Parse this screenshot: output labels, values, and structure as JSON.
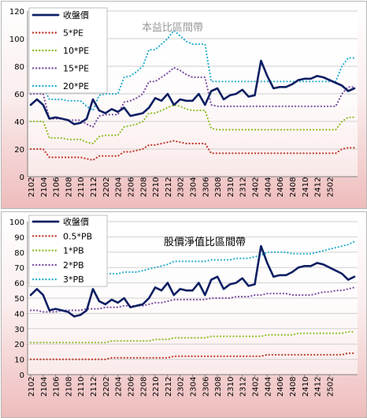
{
  "chart_data": [
    {
      "type": "line",
      "title": "本益比區間帶",
      "title_color": "#9a9a9a",
      "ylim": [
        0,
        120
      ],
      "y_ticks": [
        0,
        20,
        40,
        60,
        80,
        100,
        120
      ],
      "x_tick_labels": [
        "2102",
        "2104",
        "2106",
        "2108",
        "2110",
        "2112",
        "2202",
        "2204",
        "2206",
        "2208",
        "2210",
        "2212",
        "2302",
        "2304",
        "2306",
        "2308",
        "2310",
        "2312",
        "2402",
        "2404",
        "2406",
        "2408",
        "2410",
        "2412",
        "2502"
      ],
      "grid": true,
      "legend_position": "top-left",
      "series": [
        {
          "name": "收盤價",
          "color": "#0d1f63",
          "style": "solid",
          "values": [
            52,
            56,
            52,
            42,
            43,
            42,
            41,
            38,
            39,
            42,
            56,
            48,
            46,
            49,
            47,
            50,
            44,
            45,
            46,
            50,
            57,
            55,
            60,
            52,
            56,
            55,
            55,
            60,
            52,
            62,
            64,
            56,
            59,
            60,
            63,
            58,
            59,
            84,
            73,
            64,
            65,
            65,
            67,
            70,
            71,
            71,
            73,
            72,
            70,
            68,
            66,
            62,
            64
          ]
        },
        {
          "name": "5*PE",
          "color": "#c0392b",
          "style": "dotted",
          "values": [
            20,
            20,
            20,
            14,
            14,
            14,
            14,
            14,
            14,
            13,
            12,
            15,
            15,
            15,
            15,
            18,
            18,
            19,
            20,
            23,
            23,
            24,
            25,
            26,
            25,
            24,
            24,
            24,
            24,
            17,
            17,
            17,
            17,
            17,
            17,
            17,
            17,
            17,
            17,
            17,
            17,
            17,
            17,
            17,
            17,
            17,
            17,
            17,
            17,
            17,
            20,
            21,
            21
          ]
        },
        {
          "name": "10*PE",
          "color": "#8fbf2a",
          "style": "dotted",
          "values": [
            40,
            40,
            40,
            28,
            28,
            28,
            27,
            27,
            27,
            25,
            24,
            29,
            30,
            30,
            30,
            36,
            37,
            38,
            40,
            46,
            46,
            48,
            50,
            52,
            51,
            49,
            48,
            48,
            48,
            35,
            34,
            34,
            34,
            34,
            34,
            34,
            34,
            34,
            34,
            34,
            34,
            34,
            34,
            34,
            34,
            34,
            34,
            34,
            34,
            34,
            40,
            43,
            43
          ]
        },
        {
          "name": "15*PE",
          "color": "#7a4fa3",
          "style": "dotted",
          "values": [
            60,
            60,
            60,
            42,
            42,
            42,
            41,
            41,
            41,
            38,
            36,
            44,
            45,
            45,
            45,
            54,
            55,
            57,
            60,
            69,
            69,
            72,
            75,
            79,
            77,
            74,
            72,
            72,
            72,
            52,
            51,
            51,
            51,
            51,
            51,
            51,
            51,
            51,
            51,
            51,
            51,
            51,
            51,
            51,
            51,
            51,
            51,
            51,
            51,
            51,
            60,
            65,
            65
          ]
        },
        {
          "name": "20*PE",
          "color": "#2ab0cf",
          "style": "dotted",
          "values": [
            65,
            65,
            65,
            56,
            56,
            56,
            55,
            55,
            55,
            51,
            48,
            59,
            60,
            60,
            60,
            72,
            73,
            76,
            80,
            92,
            92,
            96,
            100,
            106,
            102,
            98,
            96,
            96,
            96,
            69,
            69,
            69,
            69,
            69,
            69,
            69,
            69,
            69,
            69,
            69,
            69,
            69,
            69,
            69,
            69,
            69,
            69,
            69,
            69,
            69,
            80,
            86,
            86
          ]
        }
      ]
    },
    {
      "type": "line",
      "title": "股價淨值比區間帶",
      "title_color": "#000000",
      "ylim": [
        0,
        100
      ],
      "y_ticks": [
        0,
        10,
        20,
        30,
        40,
        50,
        60,
        70,
        80,
        90,
        100
      ],
      "x_tick_labels": [
        "2102",
        "2104",
        "2106",
        "2108",
        "2110",
        "2112",
        "2202",
        "2204",
        "2206",
        "2208",
        "2210",
        "2212",
        "2302",
        "2304",
        "2306",
        "2308",
        "2310",
        "2312",
        "2402",
        "2404",
        "2406",
        "2408",
        "2410",
        "2412",
        "2502"
      ],
      "grid": true,
      "legend_position": "top-left",
      "series": [
        {
          "name": "收盤價",
          "color": "#0d1f63",
          "style": "solid",
          "values": [
            52,
            56,
            52,
            42,
            43,
            42,
            41,
            38,
            39,
            42,
            56,
            48,
            46,
            49,
            47,
            50,
            44,
            45,
            46,
            50,
            57,
            55,
            60,
            52,
            56,
            55,
            55,
            60,
            52,
            62,
            64,
            56,
            59,
            60,
            63,
            58,
            59,
            84,
            73,
            64,
            65,
            65,
            67,
            70,
            71,
            71,
            73,
            72,
            70,
            68,
            66,
            62,
            64
          ]
        },
        {
          "name": "0.5*PB",
          "color": "#c0392b",
          "style": "dotted",
          "values": [
            10,
            10,
            10,
            10,
            10,
            10,
            10,
            10,
            10,
            10,
            10,
            10,
            10,
            11,
            11,
            11,
            11,
            11,
            11,
            11,
            11,
            11,
            11,
            12,
            12,
            12,
            12,
            12,
            12,
            12,
            12,
            12,
            12,
            12,
            12,
            12,
            12,
            12,
            13,
            13,
            13,
            13,
            13,
            13,
            13,
            13,
            13,
            13,
            13,
            13,
            13,
            14,
            14
          ]
        },
        {
          "name": "1*PB",
          "color": "#8fbf2a",
          "style": "dotted",
          "values": [
            21,
            21,
            21,
            21,
            21,
            21,
            21,
            21,
            21,
            21,
            21,
            21,
            21,
            22,
            22,
            22,
            22,
            22,
            22,
            22,
            23,
            23,
            23,
            24,
            24,
            24,
            24,
            24,
            24,
            25,
            25,
            25,
            25,
            25,
            25,
            25,
            25,
            25,
            26,
            26,
            26,
            26,
            26,
            27,
            27,
            27,
            27,
            27,
            27,
            27,
            27,
            28,
            28
          ]
        },
        {
          "name": "2*PB",
          "color": "#7a4fa3",
          "style": "dotted",
          "values": [
            42,
            42,
            41,
            41,
            41,
            42,
            42,
            42,
            42,
            43,
            43,
            43,
            44,
            44,
            44,
            45,
            45,
            45,
            45,
            46,
            47,
            47,
            48,
            49,
            49,
            49,
            49,
            49,
            49,
            50,
            50,
            50,
            50,
            51,
            51,
            51,
            52,
            52,
            53,
            53,
            53,
            53,
            52,
            52,
            52,
            52,
            53,
            54,
            54,
            55,
            55,
            56,
            57
          ]
        },
        {
          "name": "3*PB",
          "color": "#2ab0cf",
          "style": "dotted",
          "values": [
            63,
            63,
            62,
            62,
            62,
            62,
            62,
            63,
            63,
            64,
            64,
            64,
            66,
            66,
            66,
            67,
            67,
            67,
            68,
            69,
            70,
            71,
            72,
            74,
            74,
            74,
            74,
            74,
            74,
            75,
            75,
            75,
            75,
            76,
            76,
            76,
            77,
            78,
            80,
            80,
            80,
            80,
            79,
            79,
            79,
            79,
            80,
            81,
            82,
            83,
            84,
            85,
            87
          ]
        }
      ]
    }
  ]
}
